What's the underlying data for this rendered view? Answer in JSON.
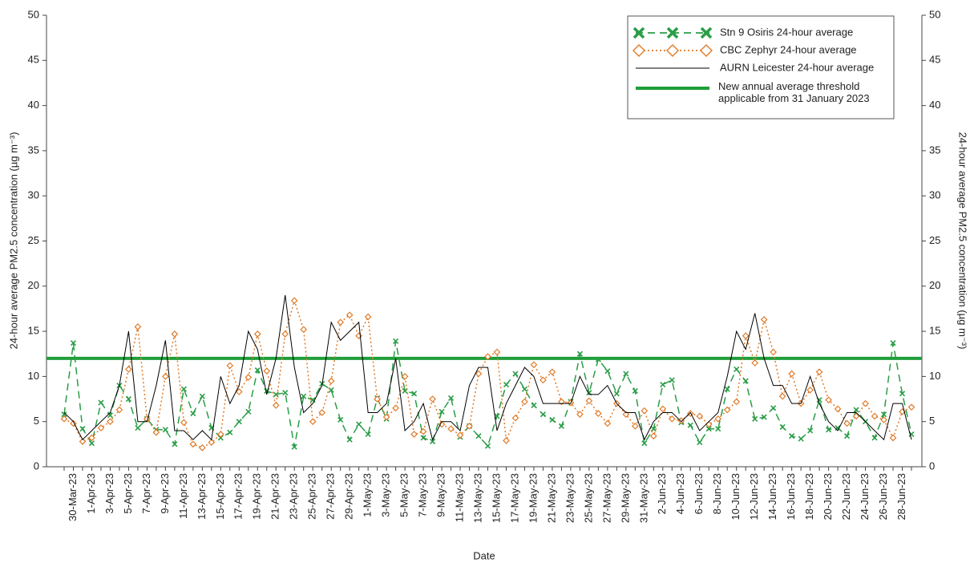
{
  "chart_data": {
    "type": "line",
    "x_label": "Date",
    "y_label": "24-hour average PM2.5 concentration (µg m⁻³)",
    "y2_label": "24-hour average PM2.5 concentration (µg m⁻³)",
    "ylim": [
      0,
      50
    ],
    "yticks": [
      0,
      5,
      10,
      15,
      20,
      25,
      30,
      35,
      40,
      45,
      50
    ],
    "y2lim": [
      0,
      50
    ],
    "y2ticks": [
      0,
      5,
      10,
      15,
      20,
      25,
      30,
      35,
      40,
      45,
      50
    ],
    "categories": [
      null,
      "30-Mar-23",
      null,
      "1-Apr-23",
      null,
      "3-Apr-23",
      null,
      "5-Apr-23",
      null,
      "7-Apr-23",
      null,
      "9-Apr-23",
      null,
      "11-Apr-23",
      null,
      "13-Apr-23",
      null,
      "15-Apr-23",
      null,
      "17-Apr-23",
      null,
      "19-Apr-23",
      null,
      "21-Apr-23",
      null,
      "23-Apr-23",
      null,
      "25-Apr-23",
      null,
      "27-Apr-23",
      null,
      "29-Apr-23",
      null,
      "1-May-23",
      null,
      "3-May-23",
      null,
      "5-May-23",
      null,
      "7-May-23",
      null,
      "9-May-23",
      null,
      "11-May-23",
      null,
      "13-May-23",
      null,
      "15-May-23",
      null,
      "17-May-23",
      null,
      "19-May-23",
      null,
      "21-May-23",
      null,
      "23-May-23",
      null,
      "25-May-23",
      null,
      "27-May-23",
      null,
      "29-May-23",
      null,
      "31-May-23",
      null,
      "2-Jun-23",
      null,
      "4-Jun-23",
      null,
      "6-Jun-23",
      null,
      "8-Jun-23",
      null,
      "10-Jun-23",
      null,
      "12-Jun-23",
      null,
      "14-Jun-23",
      null,
      "16-Jun-23",
      null,
      "18-Jun-23",
      null,
      "20-Jun-23",
      null,
      "22-Jun-23",
      null,
      "24-Jun-23",
      null,
      "26-Jun-23",
      null,
      "28-Jun-23",
      null
    ],
    "series": [
      {
        "name": "Stn 9 Osiris 24-hour average",
        "color": "#2a9d47",
        "style": "dashed",
        "marker": "x",
        "values": [
          5.8,
          13.7,
          4.2,
          2.6,
          7.1,
          5.7,
          9,
          7.5,
          4.3,
          5.3,
          4.1,
          4.1,
          2.5,
          8.6,
          5.9,
          7.8,
          4.3,
          3.2,
          3.8,
          5,
          6.1,
          10.7,
          8.4,
          8,
          8.2,
          2.2,
          7.8,
          7.4,
          9.2,
          8.5,
          5.2,
          3,
          4.7,
          3.6,
          7.6,
          5.3,
          13.9,
          8.4,
          8.1,
          3.2,
          2.8,
          6.1,
          7.6,
          3.3,
          4.5,
          3.4,
          2.3,
          5.6,
          9.1,
          10.3,
          8.6,
          6.8,
          5.8,
          5.2,
          4.5,
          7.2,
          12.5,
          8.2,
          11.9,
          10.6,
          8.1,
          10.3,
          8.4,
          2.6,
          4.2,
          9.1,
          9.6,
          4.9,
          4.6,
          2.7,
          4.2,
          4.2,
          8.6,
          10.8,
          9.5,
          5.3,
          5.5,
          6.5,
          4.4,
          3.4,
          3.1,
          4,
          7.4,
          4.1,
          4.3,
          3.4,
          6.3,
          5,
          3.2,
          5.8,
          13.7,
          8.1,
          3.6
        ]
      },
      {
        "name": "CBC Zephyr 24-hour average",
        "color": "#e07b28",
        "style": "dotted",
        "marker": "diamond",
        "values": [
          5.3,
          4.8,
          2.8,
          3.2,
          4.3,
          5,
          6.3,
          10.8,
          15.5,
          5.3,
          3.8,
          10,
          14.7,
          4.9,
          2.5,
          2.1,
          2.7,
          3.6,
          11.2,
          8.3,
          9.9,
          14.7,
          10.6,
          6.8,
          14.7,
          18.4,
          15.2,
          5,
          6,
          9.5,
          16,
          16.8,
          14.5,
          16.6,
          7.5,
          5.5,
          6.5,
          10,
          3.6,
          3.9,
          7.5,
          4.7,
          4.2,
          3.5,
          4.5,
          10.3,
          12.2,
          12.7,
          2.9,
          5.4,
          7.2,
          11.3,
          9.6,
          10.5,
          7.2,
          7.1,
          5.8,
          7.3,
          5.9,
          4.8,
          7,
          5.8,
          4.5,
          6.2,
          3.4,
          6.4,
          5.3,
          5.1,
          5.9,
          5.6,
          4.7,
          5.3,
          6.3,
          7.2,
          14.5,
          11.5,
          16.3,
          12.7,
          7.8,
          10.3,
          7,
          8.5,
          10.5,
          7.4,
          6.4,
          4.8,
          5.6,
          7,
          5.6,
          5.2,
          3.2,
          6.1,
          6.6
        ]
      },
      {
        "name": "AURN Leicester 24-hour average",
        "color": "#000000",
        "style": "solid",
        "marker": "none",
        "values": [
          6,
          5,
          3,
          4,
          5,
          6,
          9,
          15,
          5,
          5,
          9,
          14,
          4,
          4,
          3,
          4,
          3,
          10,
          7,
          9,
          15,
          13,
          8,
          12,
          19,
          11,
          6,
          7,
          9,
          16,
          14,
          15,
          16,
          6,
          6,
          7,
          12,
          4,
          5,
          7,
          3,
          5,
          5,
          4,
          9,
          11,
          11,
          4,
          7,
          9,
          11,
          10,
          7,
          7,
          7,
          7,
          10,
          8,
          8,
          9,
          7,
          6,
          6,
          3,
          5,
          6,
          6,
          5,
          6,
          4,
          5,
          6,
          10,
          15,
          13,
          17,
          12,
          9,
          9,
          7,
          7,
          10,
          7,
          5,
          4,
          6,
          6,
          5,
          4,
          3,
          7,
          7,
          3
        ]
      }
    ],
    "threshold": {
      "name": "New annual average threshold applicable from 31 January 2023",
      "value": 12,
      "color": "#1f9e3a"
    },
    "legend": "upper right"
  }
}
